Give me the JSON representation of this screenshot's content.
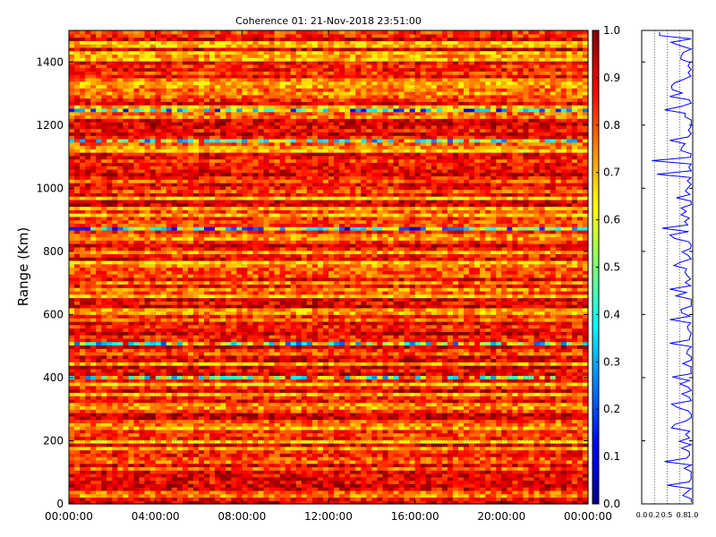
{
  "chart_data": [
    {
      "type": "heatmap",
      "title": "Coherence 01: 21-Nov-2018 23:51:00",
      "xlabel": "",
      "ylabel": "Range (Km)",
      "xticks": [
        "00:00:00",
        "04:00:00",
        "08:00:00",
        "12:00:00",
        "16:00:00",
        "20:00:00",
        "00:00:00"
      ],
      "xlim_hours": [
        0,
        24
      ],
      "yticks": [
        0,
        200,
        400,
        600,
        800,
        1000,
        1200,
        1400
      ],
      "ylim": [
        0,
        1500
      ],
      "colormap": "jet",
      "grid": true,
      "colorbar": {
        "ticks": [
          "0.0",
          "0.1",
          "0.2",
          "0.3",
          "0.4",
          "0.5",
          "0.6",
          "0.7",
          "0.8",
          "0.9",
          "1.0"
        ],
        "range": [
          0,
          1
        ]
      },
      "notable_rows": [
        {
          "range_km": 1245,
          "coherence": 0.45
        },
        {
          "range_km": 1155,
          "coherence": 0.55
        },
        {
          "range_km": 875,
          "coherence": 0.4
        },
        {
          "range_km": 505,
          "coherence": 0.55
        },
        {
          "range_km": 400,
          "coherence": 0.6
        }
      ]
    },
    {
      "type": "line",
      "title": "",
      "xlabel": "",
      "ylabel": "",
      "xticks": [
        "0.0",
        "0.2",
        "0.5",
        "0.8",
        "1.0"
      ],
      "xlim": [
        0,
        1
      ],
      "ylim": [
        0,
        1500
      ],
      "grid": true,
      "series": [
        {
          "color": "#0000ff",
          "profile": [
            {
              "range_km": 1490,
              "coherence": 0.35
            },
            {
              "range_km": 1245,
              "coherence": 0.45
            },
            {
              "range_km": 1155,
              "coherence": 0.55
            },
            {
              "range_km": 1085,
              "coherence": 0.2
            },
            {
              "range_km": 1045,
              "coherence": 0.3
            },
            {
              "range_km": 875,
              "coherence": 0.4
            },
            {
              "range_km": 505,
              "coherence": 0.55
            },
            {
              "range_km": 400,
              "coherence": 0.6
            },
            {
              "range_km": 130,
              "coherence": 0.45
            },
            {
              "range_km": 60,
              "coherence": 0.5
            }
          ]
        }
      ]
    }
  ]
}
